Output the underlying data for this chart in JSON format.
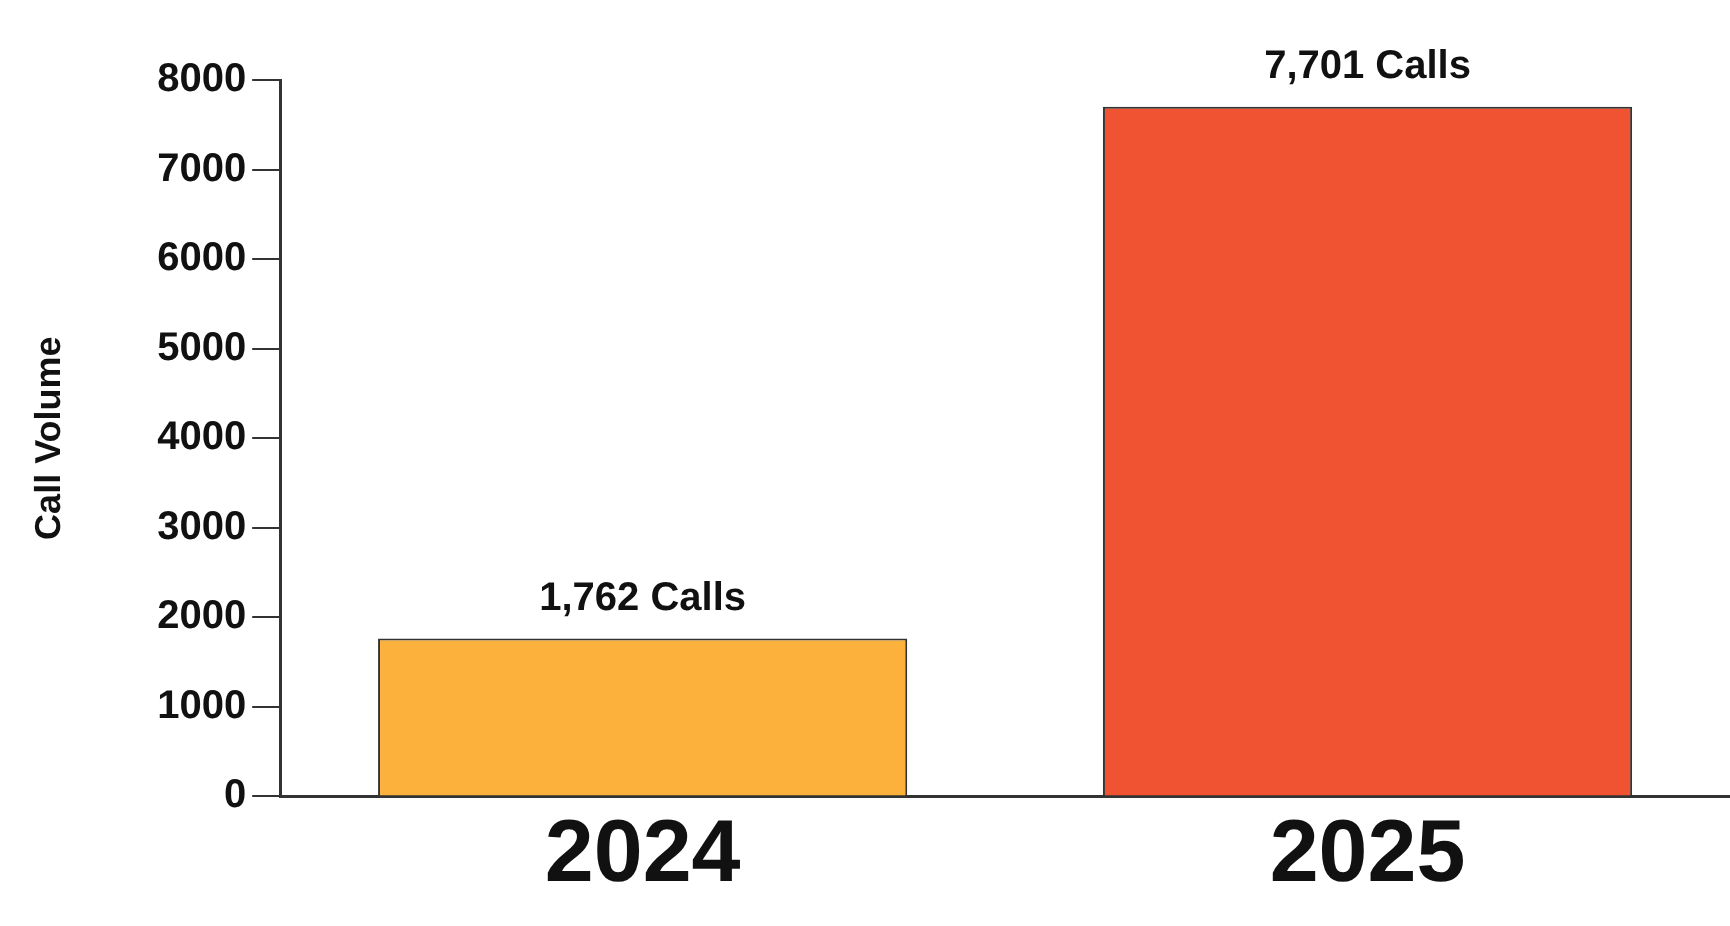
{
  "chart_data": {
    "type": "bar",
    "ylabel": "Call Volume",
    "categories": [
      "2024",
      "2025"
    ],
    "values": [
      1762,
      7701
    ],
    "colors": [
      "#fbb13c",
      "#f05331"
    ],
    "value_labels": [
      "1,762 Calls",
      "7,701 Calls"
    ],
    "ylim": [
      0,
      8000
    ],
    "yticks": [
      0,
      1000,
      2000,
      3000,
      4000,
      5000,
      6000,
      7000,
      8000
    ],
    "grid": false,
    "legend": false
  }
}
